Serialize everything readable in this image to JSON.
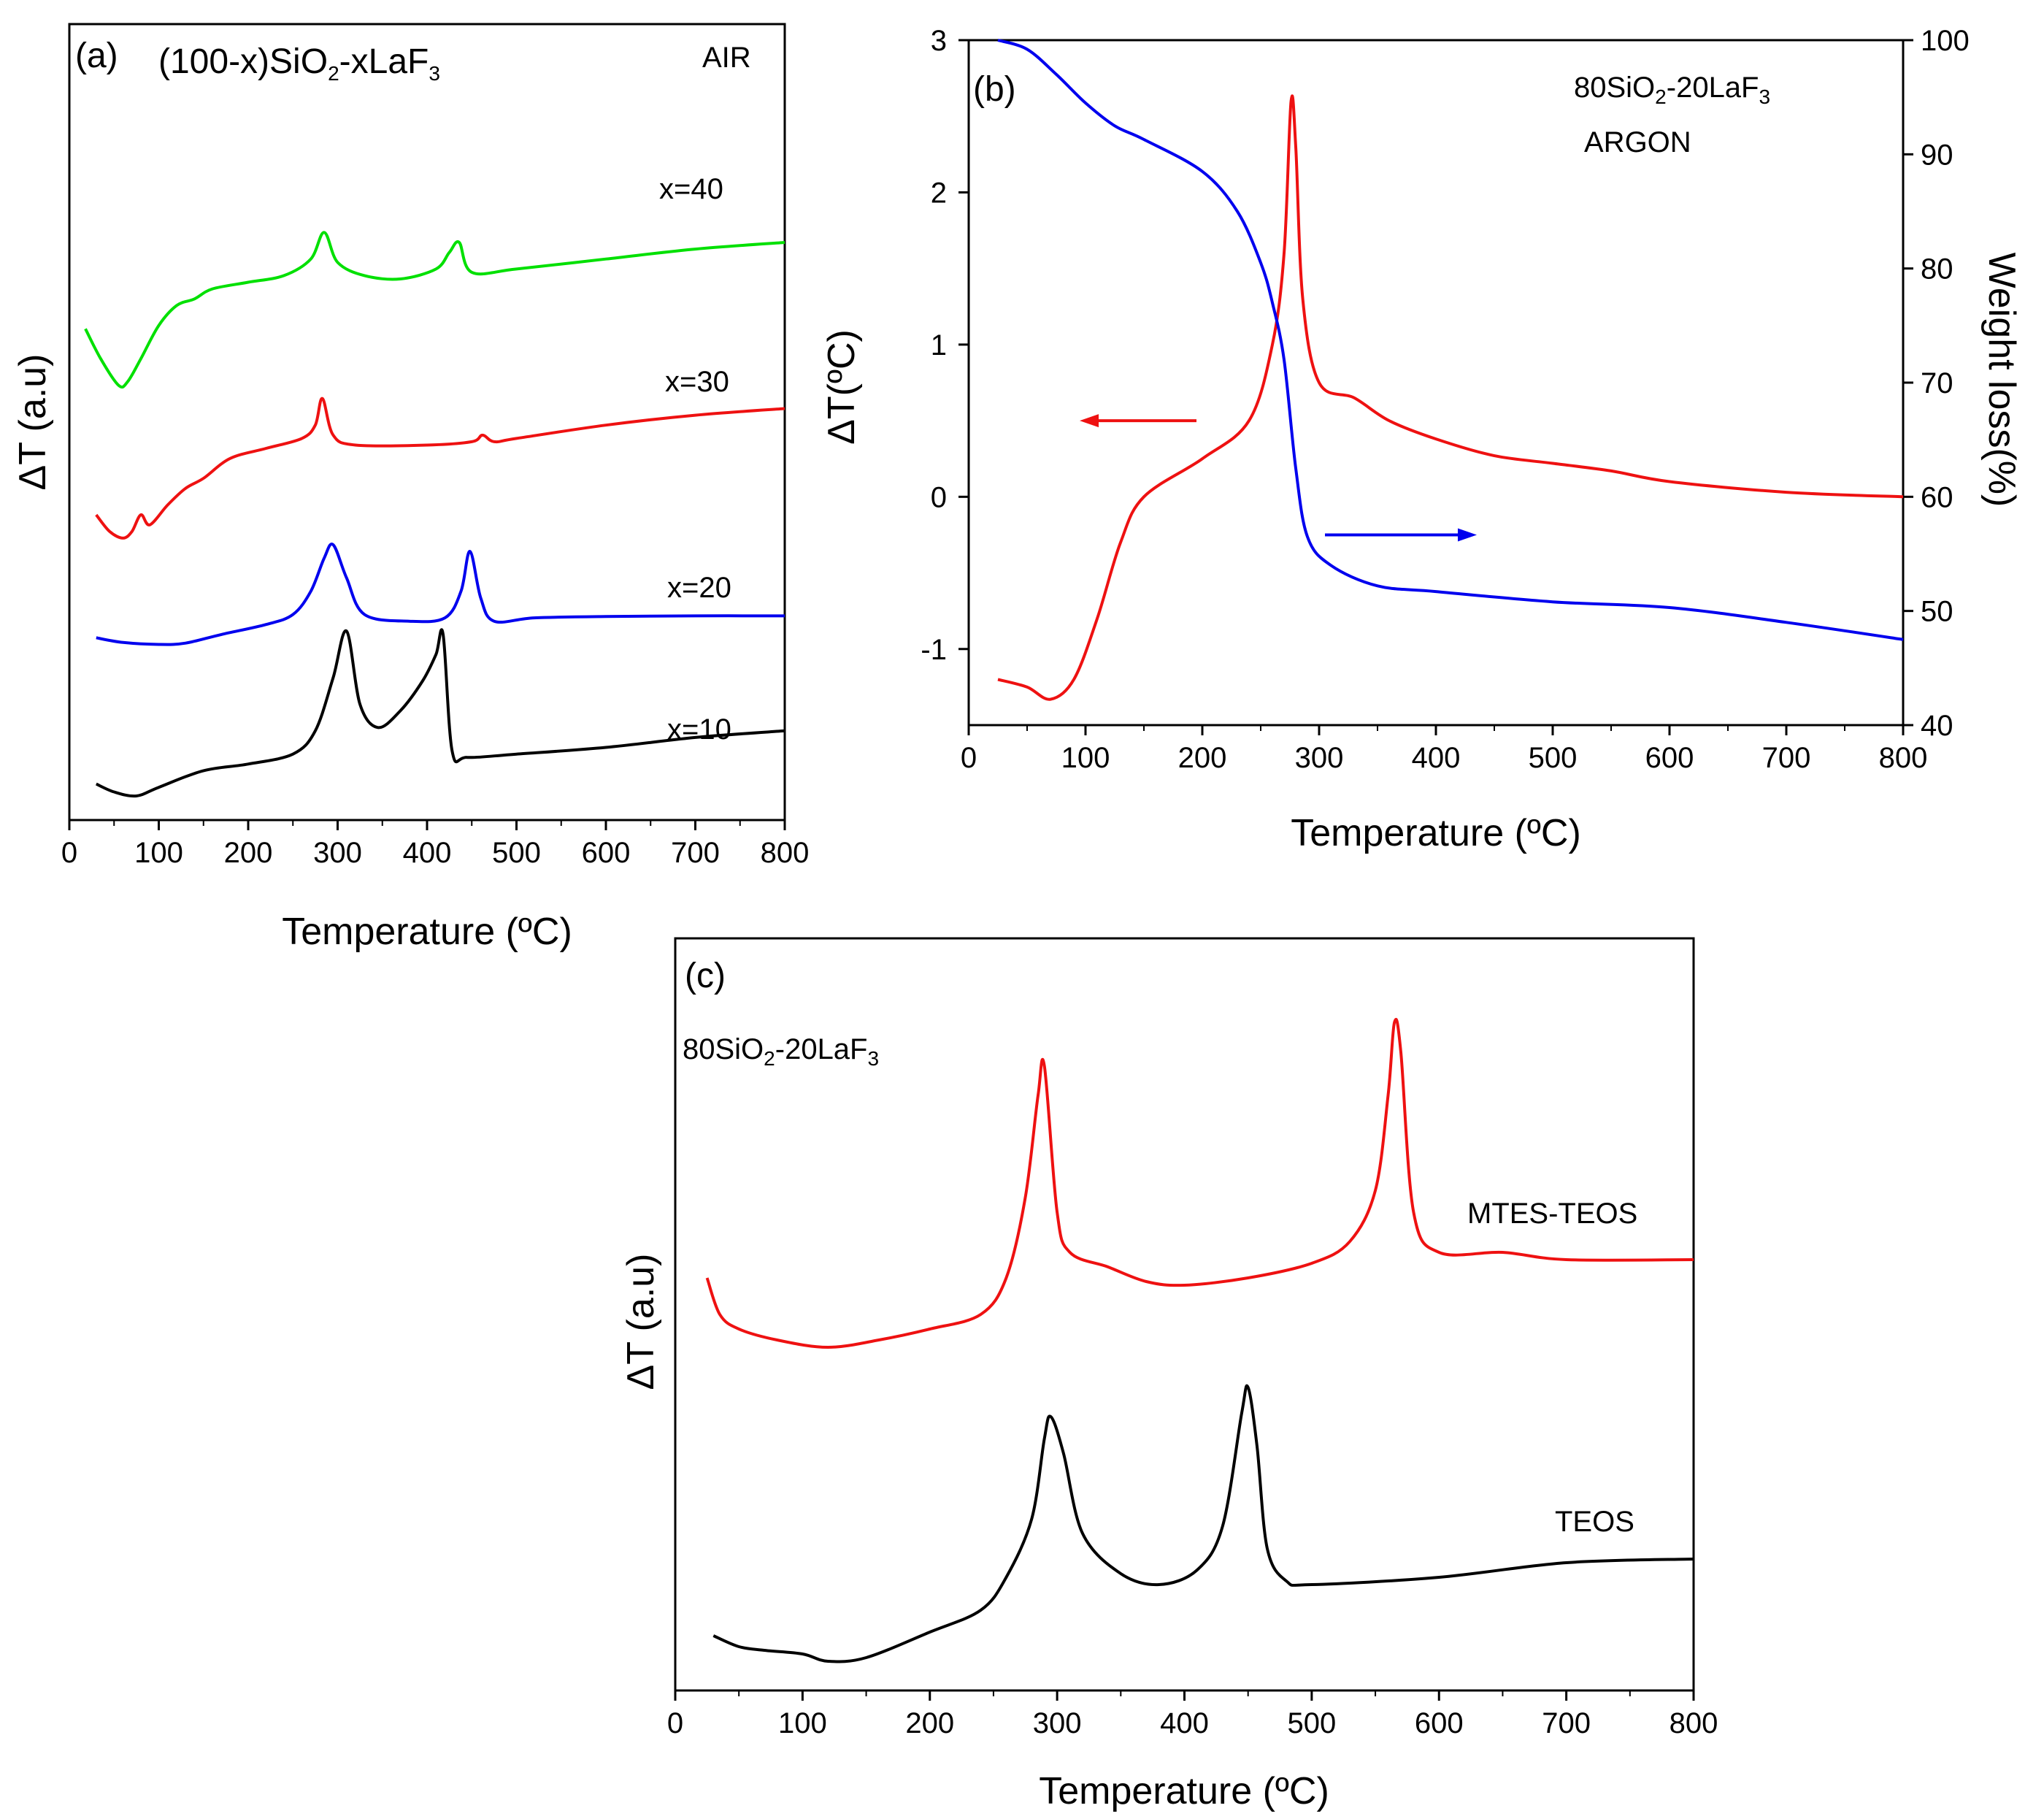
{
  "chart_data": [
    {
      "id": "a",
      "type": "line",
      "panel_label": "(a)",
      "title_parts": [
        "(100-x)SiO",
        "2",
        "-xLaF",
        "3"
      ],
      "atmosphere": "AIR",
      "xlabel": "Temperature (ºC)",
      "ylabel": "ΔT (a.u)",
      "xlim": [
        0,
        800
      ],
      "xticks": [
        0,
        100,
        200,
        300,
        400,
        500,
        600,
        700,
        800
      ],
      "ylim": [
        0,
        100
      ],
      "y_ticks_shown": false,
      "series": [
        {
          "name": "x=40",
          "color": "#00e000",
          "x": [
            18,
            35,
            55,
            65,
            80,
            100,
            120,
            140,
            160,
            200,
            240,
            270,
            285,
            300,
            330,
            370,
            410,
            425,
            436,
            450,
            500,
            600,
            700,
            800
          ],
          "y": [
            72.5,
            68,
            64,
            64.5,
            68,
            73,
            76,
            77,
            78.5,
            79.5,
            80.5,
            83,
            87,
            82.5,
            80.5,
            80,
            81.5,
            84,
            85.5,
            81,
            81.5,
            83,
            84.5,
            85.5
          ]
        },
        {
          "name": "x=30",
          "color": "#ee1111",
          "x": [
            30,
            45,
            60,
            70,
            80,
            90,
            110,
            130,
            150,
            180,
            220,
            260,
            275,
            283,
            295,
            320,
            400,
            450,
            462,
            475,
            500,
            600,
            700,
            800
          ],
          "y": [
            44.5,
            42,
            41,
            42,
            44.5,
            43,
            46,
            48.5,
            50,
            53,
            54.5,
            56,
            58,
            62,
            56.5,
            55,
            55,
            55.5,
            56.5,
            55.5,
            56,
            58,
            59.5,
            60.5
          ]
        },
        {
          "name": "x=20",
          "color": "#0000ee",
          "x": [
            30,
            60,
            100,
            130,
            170,
            220,
            250,
            270,
            285,
            295,
            310,
            330,
            380,
            420,
            438,
            448,
            460,
            475,
            520,
            600,
            700,
            800
          ],
          "y": [
            26,
            25.3,
            25,
            25.2,
            26.5,
            28,
            29.5,
            33,
            38,
            40,
            35,
            29.5,
            28.5,
            29,
            33,
            39,
            32,
            28.5,
            29,
            29.2,
            29.3,
            29.3
          ]
        },
        {
          "name": "x=10",
          "color": "#000000",
          "x": [
            30,
            50,
            75,
            100,
            150,
            200,
            250,
            275,
            295,
            310,
            325,
            345,
            370,
            395,
            410,
            418,
            428,
            445,
            500,
            600,
            700,
            800
          ],
          "y": [
            4,
            2.8,
            2.2,
            3.5,
            6,
            7,
            8.5,
            12,
            20,
            27,
            16,
            12.5,
            15,
            19.5,
            23.5,
            26.5,
            9,
            8,
            8.5,
            9.5,
            11,
            12
          ]
        }
      ],
      "series_labels": [
        "x=40",
        "x=30",
        "x=20",
        "x=10"
      ]
    },
    {
      "id": "b",
      "type": "line",
      "panel_label": "(b)",
      "title_parts": [
        "80SiO",
        "2",
        "-20LaF",
        "3"
      ],
      "atmosphere": "ARGON",
      "xlabel": "Temperature (ºC)",
      "ylabel_left": "ΔT(ºC)",
      "ylabel_right": "Weight loss(%)",
      "xlim": [
        0,
        800
      ],
      "xticks": [
        0,
        100,
        200,
        300,
        400,
        500,
        600,
        700,
        800
      ],
      "ylim_left": [
        -1.5,
        3
      ],
      "yticks_left": [
        -1,
        0,
        1,
        2,
        3
      ],
      "ylim_right": [
        40,
        100
      ],
      "yticks_right": [
        40,
        50,
        60,
        70,
        80,
        90,
        100
      ],
      "series": [
        {
          "name": "ΔT",
          "axis": "left",
          "color": "#ee1111",
          "x": [
            25,
            50,
            70,
            90,
            110,
            130,
            150,
            200,
            240,
            260,
            270,
            276,
            280,
            286,
            300,
            330,
            360,
            400,
            450,
            500,
            550,
            600,
            700,
            800
          ],
          "y": [
            -1.2,
            -1.25,
            -1.33,
            -1.2,
            -0.8,
            -0.3,
            0,
            0.25,
            0.5,
            1.0,
            1.6,
            2.6,
            2.3,
            1.3,
            0.75,
            0.65,
            0.5,
            0.38,
            0.27,
            0.22,
            0.17,
            0.1,
            0.03,
            0
          ]
        },
        {
          "name": "Weight loss",
          "axis": "right",
          "color": "#0000ee",
          "x": [
            25,
            50,
            75,
            100,
            125,
            150,
            200,
            230,
            250,
            260,
            270,
            280,
            290,
            310,
            350,
            400,
            500,
            600,
            700,
            800
          ],
          "y": [
            100,
            99.2,
            97,
            94.5,
            92.5,
            91.3,
            88.5,
            85,
            80.5,
            77,
            72,
            62.5,
            56.5,
            54,
            52.2,
            51.7,
            50.8,
            50.3,
            49,
            47.5
          ]
        }
      ],
      "arrows": [
        {
          "series": "ΔT",
          "direction": "left",
          "from": [
            195,
            0.5
          ],
          "to": [
            95,
            0.5
          ]
        },
        {
          "series": "Weight loss",
          "direction": "right",
          "from": [
            305,
            -0.25
          ],
          "to": [
            435,
            -0.25
          ]
        }
      ]
    },
    {
      "id": "c",
      "type": "line",
      "panel_label": "(c)",
      "title_parts": [
        "80SiO",
        "2",
        "-20LaF",
        "3"
      ],
      "xlabel": "Temperature (ºC)",
      "ylabel": "ΔT (a.u)",
      "xlim": [
        0,
        800
      ],
      "xticks": [
        0,
        100,
        200,
        300,
        400,
        500,
        600,
        700,
        800
      ],
      "ylim": [
        0,
        100
      ],
      "y_ticks_shown": false,
      "series": [
        {
          "name": "MTES-TEOS",
          "color": "#ee1111",
          "x": [
            25,
            35,
            50,
            80,
            120,
            160,
            200,
            240,
            260,
            275,
            285,
            290,
            300,
            310,
            340,
            370,
            400,
            450,
            500,
            530,
            550,
            560,
            565,
            570,
            580,
            600,
            650,
            700,
            800
          ],
          "y": [
            55,
            50,
            48,
            46.5,
            45.5,
            46.5,
            48,
            50,
            55,
            66,
            80,
            84,
            64,
            58.5,
            56.5,
            54.5,
            54,
            55,
            57,
            60,
            67,
            80,
            90,
            86,
            64,
            58.5,
            58.5,
            57.5,
            57.5
          ]
        },
        {
          "name": "TEOS",
          "color": "#000000",
          "x": [
            30,
            50,
            70,
            100,
            120,
            150,
            200,
            240,
            260,
            280,
            290,
            295,
            305,
            320,
            350,
            380,
            410,
            430,
            445,
            450,
            457,
            465,
            480,
            500,
            600,
            700,
            800
          ],
          "y": [
            6,
            4.5,
            4,
            3.5,
            2.5,
            3,
            6.5,
            9.5,
            14,
            22,
            33,
            36,
            31,
            20,
            14.5,
            13,
            15,
            21,
            36.5,
            40,
            32,
            18,
            13.5,
            13,
            14,
            16,
            16.5
          ]
        }
      ],
      "series_labels": [
        "MTES-TEOS",
        "TEOS"
      ]
    }
  ]
}
